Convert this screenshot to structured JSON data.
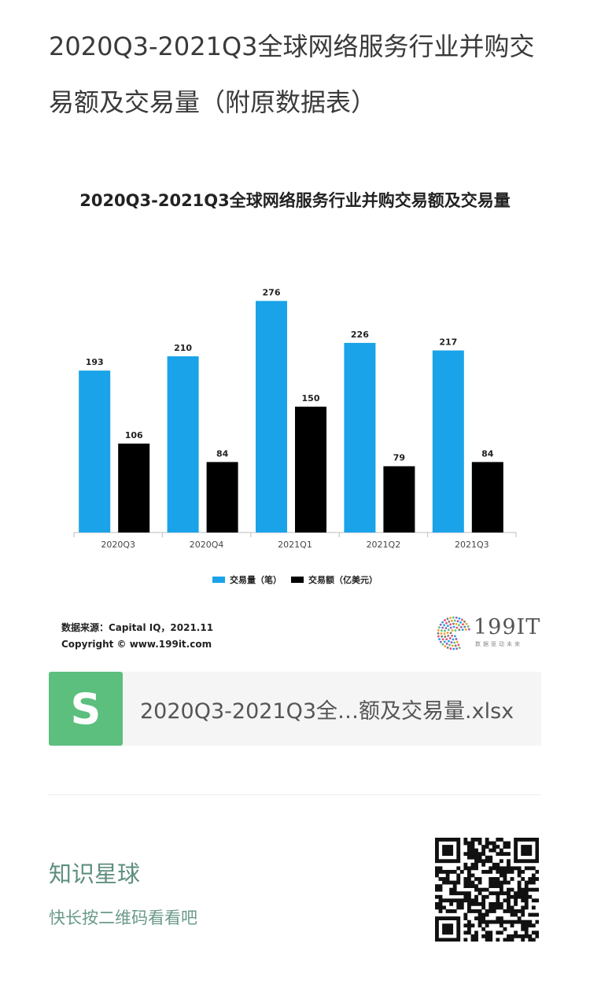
{
  "page": {
    "title": "2020Q3-2021Q3全球网络服务行业并购交易额及交易量（附原数据表）"
  },
  "chart_data": {
    "type": "bar",
    "title": "2020Q3-2021Q3全球网络服务行业并购交易额及交易量",
    "categories": [
      "2020Q3",
      "2020Q4",
      "2021Q1",
      "2021Q2",
      "2021Q3"
    ],
    "series": [
      {
        "name": "交易量（笔）",
        "values": [
          193,
          210,
          276,
          226,
          217
        ],
        "color": "#1aa3e8"
      },
      {
        "name": "交易额（亿美元）",
        "values": [
          106,
          84,
          150,
          79,
          84
        ],
        "color": "#000000"
      }
    ],
    "ylim": [
      0,
      300
    ],
    "grid": false,
    "legend": "bottom-center",
    "data_labels": true
  },
  "source": {
    "line1": "数据来源：Capital IQ，2021.11",
    "line2": "Copyright © www.199it.com"
  },
  "logo": {
    "text": "199IT",
    "tagline": "数据驱动未来"
  },
  "attachment": {
    "icon": "S",
    "filename": "2020Q3-2021Q3全…额及交易量.xlsx",
    "icon_color": "#5cbf7e"
  },
  "footer": {
    "title": "知识星球",
    "subtitle": "快长按二维码看看吧"
  },
  "icons": {
    "qr": "qr-code-icon",
    "logo_mark": "dot-sphere-logo-icon",
    "file": "spreadsheet-file-icon"
  }
}
